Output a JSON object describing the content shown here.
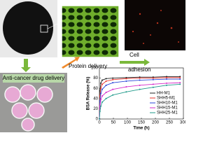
{
  "labels": {
    "cell_adhesion": [
      "Cell",
      "adhesion"
    ],
    "protein_delivery": "Protein delivery",
    "drug_delivery": "Anti-cancer drug delivery"
  },
  "chart_data": {
    "type": "line",
    "xlabel": "Time (h)",
    "ylabel": "BSA Release (%)",
    "x": [
      0,
      2,
      5,
      10,
      24,
      48,
      96,
      144,
      192,
      240,
      288
    ],
    "series": [
      {
        "name": "HH-M1",
        "color": "#222222",
        "values": [
          0,
          55,
          70,
          76,
          79,
          80,
          81,
          82,
          82,
          83,
          83
        ]
      },
      {
        "name": "SHH5-M1",
        "color": "#e8312a",
        "values": [
          0,
          45,
          60,
          68,
          74,
          77,
          79,
          80,
          80,
          81,
          81
        ]
      },
      {
        "name": "SHH10-M1",
        "color": "#2a45d8",
        "values": [
          0,
          35,
          50,
          58,
          66,
          71,
          74,
          76,
          77,
          78,
          78
        ]
      },
      {
        "name": "SHH15-M1",
        "color": "#d629c9",
        "values": [
          0,
          25,
          38,
          45,
          52,
          58,
          63,
          66,
          68,
          70,
          71
        ]
      },
      {
        "name": "SHH25-M1",
        "color": "#1f9a8a",
        "values": [
          0,
          15,
          25,
          33,
          40,
          47,
          53,
          58,
          62,
          66,
          68
        ]
      }
    ],
    "xlim": [
      0,
      300
    ],
    "xticks": [
      0,
      50,
      100,
      150,
      200,
      250,
      300
    ],
    "ylim": [
      0,
      100
    ],
    "yticks": [
      0,
      20,
      40,
      60,
      80,
      100
    ]
  }
}
